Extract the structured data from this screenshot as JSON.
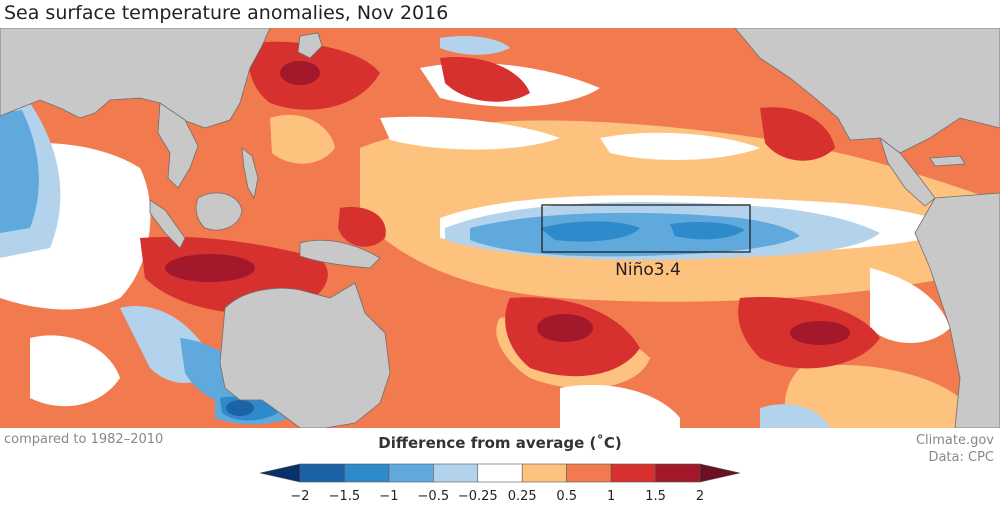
{
  "title": "Sea surface temperature anomalies, Nov 2016",
  "region_label": "Niño3.4",
  "baseline_note": "compared to 1982–2010",
  "credit": {
    "source": "Climate.gov",
    "data": "Data: CPC"
  },
  "legend": {
    "title": "Difference from average (˚C)",
    "ticks": [
      "−2",
      "−1.5",
      "−1",
      "−0.5",
      "−0.25",
      "0.25",
      "0.5",
      "1",
      "1.5",
      "2"
    ],
    "bins": [
      {
        "range": "<-2",
        "color": "#08306b"
      },
      {
        "range": "-2 to -1.5",
        "color": "#1c62a6"
      },
      {
        "range": "-1.5 to -1",
        "color": "#2f8acb"
      },
      {
        "range": "-1 to -0.5",
        "color": "#5fa9dd"
      },
      {
        "range": "-0.5 to -0.25",
        "color": "#b3d3ec"
      },
      {
        "range": "-0.25 to 0.25",
        "color": "#ffffff"
      },
      {
        "range": "0.25 to 0.5",
        "color": "#fdc27d"
      },
      {
        "range": "0.5 to 1",
        "color": "#f17a4f"
      },
      {
        "range": "1 to 1.5",
        "color": "#d7312f"
      },
      {
        "range": "1.5 to 2",
        "color": "#a3182a"
      },
      {
        "range": ">2",
        "color": "#6b0f22"
      }
    ]
  },
  "colors": {
    "land": "#c8c8c8",
    "coast": "#6e6e6e",
    "label_text": "#222222"
  }
}
